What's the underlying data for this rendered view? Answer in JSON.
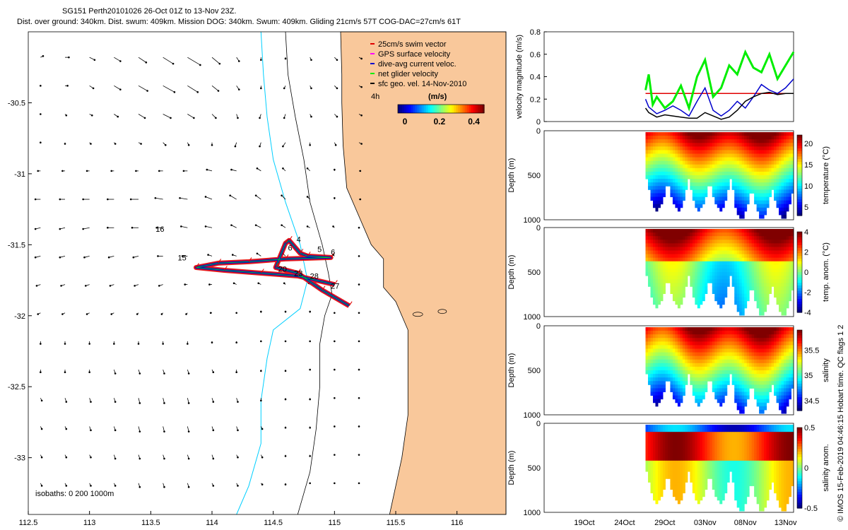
{
  "header": {
    "title_line1": "SG151 Perth20101026 26-Oct 01Z to 13-Nov 23Z.",
    "title_line2": "Dist. over ground: 340km. Dist. swum: 409km. Mission DOG: 340km. Swum: 409km. Gliding 21cm/s 57T COG-DAC=27cm/s 61T"
  },
  "credit": "© IMOS 15-Feb-2019 04:46:15 Hobart time. QC flags 1  2",
  "colors": {
    "land": "#f9c89b",
    "swim": "#e00000",
    "gps": "#ff00ff",
    "dac": "#0000cc",
    "net": "#00ee00",
    "sfc": "#000000",
    "isobath_200": "#00cfff",
    "isobath_1000": "#000000"
  },
  "chart_data": [
    {
      "id": "map",
      "type": "scatter",
      "title": "Glider track map",
      "xlabel": "",
      "ylabel": "",
      "xlim": [
        112.5,
        116.4
      ],
      "ylim": [
        -33.4,
        -30.0
      ],
      "x_ticks": [
        112.5,
        113,
        113.5,
        114,
        114.5,
        115,
        115.5,
        116
      ],
      "x_tick_labels": [
        "112.5",
        "113",
        "113.5",
        "114",
        "114.5",
        "115",
        "115.5",
        "116"
      ],
      "y_ticks": [
        -30.5,
        -31,
        -31.5,
        -32,
        -32.5,
        -33
      ],
      "y_tick_labels": [
        "-30.5",
        "-31",
        "-31.5",
        "-32",
        "-32.5",
        "-33"
      ],
      "legend": [
        {
          "label": "25cm/s swim vector",
          "color": "#e00000"
        },
        {
          "label": "GPS surface velocity",
          "color": "#ff00ff"
        },
        {
          "label": "dive-avg current veloc.",
          "color": "#0000cc"
        },
        {
          "label": "net glider velocity",
          "color": "#00ee00"
        },
        {
          "label": "sfc geo. vel. 14-Nov-2010",
          "color": "#000000"
        }
      ],
      "colorbar": {
        "title": "(m/s)",
        "ticks": [
          "0",
          "0.2",
          "0.4"
        ],
        "range": [
          0,
          0.5
        ],
        "corner_label": "4h"
      },
      "isobath_label": "isobaths: 0   200  1000m",
      "track": [
        [
          115.12,
          -31.93
        ],
        [
          114.9,
          -31.82
        ],
        [
          114.7,
          -31.7
        ],
        [
          114.52,
          -31.66
        ],
        [
          114.6,
          -31.49
        ],
        [
          114.63,
          -31.47
        ],
        [
          114.72,
          -31.56
        ],
        [
          114.78,
          -31.58
        ],
        [
          114.97,
          -31.59
        ],
        [
          114.6,
          -31.6
        ],
        [
          114.3,
          -31.62
        ],
        [
          114.05,
          -31.63
        ],
        [
          113.87,
          -31.66
        ],
        [
          114.1,
          -31.68
        ],
        [
          114.4,
          -31.7
        ],
        [
          114.7,
          -31.72
        ],
        [
          115.0,
          -31.78
        ]
      ],
      "track_labels": [
        {
          "text": "4",
          "x": 114.69,
          "y": -31.48
        },
        {
          "text": "5",
          "x": 114.86,
          "y": -31.55
        },
        {
          "text": "6",
          "x": 114.62,
          "y": -31.54
        },
        {
          "text": "6",
          "x": 114.97,
          "y": -31.57
        },
        {
          "text": "15",
          "x": 113.72,
          "y": -31.61
        },
        {
          "text": "16",
          "x": 113.54,
          "y": -31.41
        },
        {
          "text": "20",
          "x": 114.54,
          "y": -31.69
        },
        {
          "text": "23",
          "x": 114.67,
          "y": -31.72
        },
        {
          "text": "28",
          "x": 114.8,
          "y": -31.74
        },
        {
          "text": "27",
          "x": 114.97,
          "y": -31.81
        }
      ],
      "arrows_u": [
        [
          0.02,
          0.03,
          0.04,
          0.05,
          0.06,
          0.08,
          0.1,
          0.06,
          0.02,
          0.0,
          0.0,
          0.01,
          0.02,
          0.02
        ],
        [
          0.0,
          0.02,
          0.03,
          0.05,
          0.07,
          0.09,
          0.08,
          0.05,
          0.02,
          0.0,
          -0.01,
          0.01,
          0.02,
          0.02
        ],
        [
          0.0,
          0.01,
          0.02,
          0.03,
          0.05,
          0.06,
          0.05,
          0.03,
          0.01,
          -0.01,
          -0.01,
          0.01,
          0.02,
          0.02
        ],
        [
          0.0,
          0.0,
          0.01,
          0.01,
          0.02,
          0.02,
          0.01,
          0.0,
          -0.01,
          -0.01,
          -0.02,
          0.0,
          0.01,
          0.02
        ],
        [
          -0.02,
          -0.02,
          -0.02,
          -0.02,
          -0.02,
          -0.03,
          -0.03,
          -0.04,
          -0.04,
          -0.03,
          -0.02,
          -0.02,
          0.0,
          0.01
        ],
        [
          -0.04,
          -0.04,
          -0.05,
          -0.05,
          -0.06,
          -0.06,
          -0.06,
          -0.05,
          -0.05,
          -0.04,
          -0.03,
          -0.02,
          0.0,
          0.01
        ],
        [
          -0.04,
          -0.04,
          -0.05,
          -0.05,
          -0.05,
          -0.05,
          -0.05,
          -0.05,
          -0.04,
          -0.04,
          -0.03,
          -0.02,
          -0.01,
          0.0
        ],
        [
          -0.04,
          -0.04,
          -0.04,
          -0.04,
          -0.04,
          -0.04,
          -0.04,
          -0.03,
          -0.03,
          -0.03,
          -0.02,
          -0.02,
          -0.01,
          0.0
        ],
        [
          -0.03,
          -0.03,
          -0.03,
          -0.03,
          -0.03,
          -0.03,
          -0.02,
          -0.02,
          -0.02,
          -0.02,
          -0.01,
          -0.01,
          0.0,
          0.0
        ],
        [
          -0.02,
          -0.02,
          -0.02,
          -0.02,
          -0.01,
          -0.01,
          -0.01,
          -0.01,
          0.0,
          0.0,
          0.0,
          0.0,
          0.0,
          0.0
        ],
        [
          0.0,
          0.0,
          0.0,
          0.0,
          0.0,
          0.0,
          0.0,
          0.0,
          0.0,
          0.0,
          0.0,
          0.0,
          0.0,
          0.0
        ],
        [
          0.0,
          0.0,
          0.0,
          0.01,
          0.01,
          0.01,
          0.01,
          0.01,
          0.0,
          0.0,
          0.0,
          0.0,
          0.0,
          0.0
        ],
        [
          0.01,
          0.01,
          0.01,
          0.01,
          0.01,
          0.01,
          0.01,
          0.01,
          0.01,
          0.0,
          0.0,
          0.0,
          0.0,
          0.0
        ],
        [
          0.01,
          0.01,
          0.01,
          0.01,
          0.01,
          0.01,
          0.01,
          0.01,
          0.01,
          0.01,
          0.0,
          0.0,
          0.0,
          0.0
        ],
        [
          0.01,
          0.01,
          0.01,
          0.01,
          0.01,
          0.01,
          0.01,
          0.01,
          0.01,
          0.01,
          0.0,
          0.0,
          0.0,
          0.0
        ],
        [
          0.01,
          0.01,
          0.01,
          0.01,
          0.01,
          0.01,
          0.01,
          0.01,
          0.01,
          0.01,
          0.0,
          0.0,
          0.0,
          0.0
        ]
      ],
      "arrows_v": [
        [
          0.01,
          0.0,
          -0.02,
          -0.03,
          -0.04,
          -0.05,
          -0.06,
          -0.05,
          -0.03,
          -0.02,
          -0.01,
          -0.02,
          -0.02,
          -0.01
        ],
        [
          0.0,
          0.0,
          -0.02,
          -0.03,
          -0.04,
          -0.05,
          -0.05,
          -0.04,
          -0.03,
          -0.02,
          -0.02,
          -0.02,
          -0.02,
          -0.01
        ],
        [
          0.0,
          -0.01,
          -0.01,
          -0.02,
          -0.03,
          -0.03,
          -0.03,
          -0.03,
          -0.03,
          -0.03,
          -0.03,
          -0.02,
          -0.02,
          -0.01
        ],
        [
          0.0,
          -0.01,
          -0.01,
          -0.01,
          -0.01,
          -0.02,
          -0.02,
          -0.02,
          -0.03,
          -0.03,
          -0.03,
          -0.02,
          -0.02,
          -0.01
        ],
        [
          0.0,
          0.0,
          0.0,
          0.0,
          0.0,
          0.0,
          0.0,
          0.01,
          0.01,
          0.02,
          0.02,
          0.02,
          0.01,
          0.0
        ],
        [
          0.0,
          0.0,
          0.0,
          0.0,
          0.0,
          0.01,
          0.01,
          0.02,
          0.03,
          0.03,
          0.03,
          0.02,
          0.01,
          0.0
        ],
        [
          -0.01,
          -0.01,
          -0.01,
          0.0,
          0.0,
          0.0,
          0.01,
          0.01,
          0.02,
          0.02,
          0.02,
          0.01,
          0.01,
          0.0
        ],
        [
          -0.01,
          -0.01,
          -0.01,
          -0.01,
          -0.01,
          0.0,
          0.0,
          0.01,
          0.01,
          0.02,
          0.02,
          0.01,
          0.01,
          0.0
        ],
        [
          -0.01,
          -0.01,
          -0.01,
          -0.01,
          -0.01,
          -0.01,
          0.0,
          0.0,
          0.01,
          0.01,
          0.01,
          0.01,
          0.01,
          0.0
        ],
        [
          -0.01,
          -0.01,
          -0.01,
          -0.01,
          -0.01,
          -0.01,
          -0.01,
          0.0,
          0.0,
          0.01,
          0.01,
          0.01,
          0.0,
          0.0
        ],
        [
          -0.02,
          -0.02,
          -0.02,
          -0.02,
          -0.02,
          -0.02,
          -0.02,
          -0.01,
          -0.01,
          0.0,
          0.0,
          0.0,
          0.0,
          0.0
        ],
        [
          -0.02,
          -0.02,
          -0.02,
          -0.03,
          -0.03,
          -0.03,
          -0.03,
          -0.02,
          -0.02,
          -0.01,
          -0.01,
          0.0,
          0.0,
          0.0
        ],
        [
          -0.02,
          -0.03,
          -0.03,
          -0.03,
          -0.04,
          -0.04,
          -0.04,
          -0.03,
          -0.03,
          -0.02,
          -0.01,
          -0.01,
          0.0,
          0.0
        ],
        [
          -0.02,
          -0.02,
          -0.03,
          -0.03,
          -0.04,
          -0.04,
          -0.04,
          -0.03,
          -0.03,
          -0.02,
          -0.01,
          -0.01,
          0.0,
          0.0
        ],
        [
          -0.02,
          -0.02,
          -0.02,
          -0.03,
          -0.03,
          -0.03,
          -0.03,
          -0.03,
          -0.02,
          -0.02,
          -0.01,
          -0.01,
          0.0,
          0.0
        ],
        [
          -0.02,
          -0.02,
          -0.02,
          -0.02,
          -0.03,
          -0.03,
          -0.03,
          -0.02,
          -0.02,
          -0.01,
          -0.01,
          0.0,
          0.0,
          0.0
        ]
      ]
    },
    {
      "id": "velocity",
      "type": "line",
      "title": "",
      "xlabel": "",
      "ylabel": "velocity magnitude (m/s)",
      "xlim": [
        14,
        45
      ],
      "ylim": [
        0,
        0.8
      ],
      "y_ticks": [
        "0",
        "0.2",
        "0.4",
        "0.6",
        "0.8"
      ],
      "series": [
        {
          "name": "swim",
          "color": "#e00000",
          "x": [
            26.6,
            45
          ],
          "y": [
            0.25,
            0.25
          ]
        },
        {
          "name": "dac",
          "color": "#0000cc",
          "x": [
            26.6,
            27,
            28,
            29,
            30,
            31,
            32,
            33,
            34,
            35,
            36,
            37,
            38,
            39,
            40,
            41,
            42,
            43,
            44,
            45
          ],
          "y": [
            0.2,
            0.13,
            0.07,
            0.1,
            0.14,
            0.1,
            0.05,
            0.18,
            0.3,
            0.1,
            0.05,
            0.1,
            0.18,
            0.12,
            0.22,
            0.33,
            0.28,
            0.25,
            0.3,
            0.38
          ]
        },
        {
          "name": "sfc",
          "color": "#000000",
          "x": [
            26.6,
            27,
            28,
            29,
            30,
            31,
            32,
            33,
            34,
            35,
            36,
            37,
            38,
            39,
            40,
            41,
            42,
            43,
            44,
            45
          ],
          "y": [
            0.12,
            0.08,
            0.04,
            0.06,
            0.05,
            0.04,
            0.03,
            0.03,
            0.08,
            0.05,
            0.02,
            0.04,
            0.1,
            0.18,
            0.22,
            0.25,
            0.26,
            0.24,
            0.25,
            0.25
          ]
        },
        {
          "name": "net",
          "color": "#00ee00",
          "x": [
            26.6,
            27,
            27.5,
            28,
            29,
            30,
            31,
            32,
            33,
            34,
            35,
            36,
            37,
            38,
            39,
            40,
            41,
            42,
            43,
            44,
            45
          ],
          "y": [
            0.28,
            0.42,
            0.15,
            0.22,
            0.12,
            0.18,
            0.32,
            0.12,
            0.4,
            0.55,
            0.22,
            0.3,
            0.5,
            0.42,
            0.62,
            0.48,
            0.44,
            0.6,
            0.38,
            0.5,
            0.62
          ]
        }
      ]
    },
    {
      "id": "temperature",
      "type": "heatmap",
      "ylabel": "Depth (m)",
      "clabel": "temperature (°C)",
      "y_ticks": [
        "0",
        "500",
        "1000"
      ],
      "c_ticks": [
        "20",
        "15",
        "10",
        "5"
      ],
      "c_range": [
        3,
        22
      ],
      "metric": "temperature"
    },
    {
      "id": "temp_anom",
      "type": "heatmap",
      "ylabel": "Depth (m)",
      "clabel": "temp. anom. (°C)",
      "y_ticks": [
        "0",
        "500",
        "1000"
      ],
      "c_ticks": [
        "4",
        "2",
        "0",
        "-2",
        "-4"
      ],
      "c_range": [
        -4,
        4
      ],
      "metric": "anomaly"
    },
    {
      "id": "salinity",
      "type": "heatmap",
      "ylabel": "Depth (m)",
      "clabel": "salinity",
      "y_ticks": [
        "0",
        "500",
        "1000"
      ],
      "c_ticks": [
        "35.5",
        "35",
        "34.5"
      ],
      "c_range": [
        34.3,
        35.9
      ],
      "metric": "salinity"
    },
    {
      "id": "sal_anom",
      "type": "heatmap",
      "ylabel": "Depth (m)",
      "clabel": "salinity anom.",
      "y_ticks": [
        "0",
        "500",
        "1000"
      ],
      "c_ticks": [
        "0.5",
        "0",
        "-0.5"
      ],
      "c_range": [
        -0.5,
        0.5
      ],
      "metric": "salanom",
      "x_tick_labels": [
        "19Oct",
        "24Oct",
        "29Oct",
        "03Nov",
        "08Nov",
        "13Nov"
      ]
    }
  ]
}
